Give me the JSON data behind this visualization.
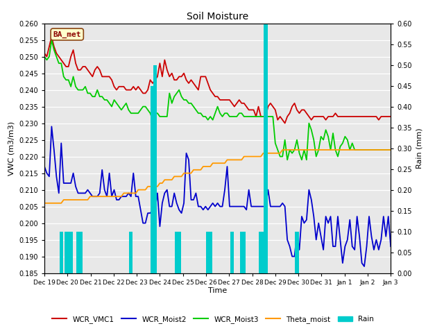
{
  "title": "Soil Moisture",
  "xlabel": "Time",
  "ylabel_left": "VWC (m3/m3)",
  "ylabel_right": "Rain (mm)",
  "ylim_left": [
    0.185,
    0.26
  ],
  "ylim_right": [
    0.0,
    0.6
  ],
  "site_label": "BA_met",
  "x_tick_labels": [
    "Dec 19",
    "Dec 20",
    "Dec 21",
    "Dec 22",
    "Dec 23",
    "Dec 24",
    "Dec 25",
    "Dec 26",
    "Dec 27",
    "Dec 28",
    "Dec 29",
    "Dec 30",
    "Dec 31",
    "Jan 1",
    "Jan 2",
    "Jan 3"
  ],
  "colors": {
    "WCR_VMC1": "#cc0000",
    "WCR_Moist2": "#0000cc",
    "WCR_Moist3": "#00cc00",
    "Theta_moist": "#ff9900",
    "Rain": "#00cccc"
  },
  "WCR_VMC1": [
    0.251,
    0.25,
    0.253,
    0.256,
    0.253,
    0.251,
    0.25,
    0.249,
    0.248,
    0.247,
    0.247,
    0.25,
    0.252,
    0.248,
    0.246,
    0.246,
    0.247,
    0.247,
    0.246,
    0.245,
    0.244,
    0.246,
    0.247,
    0.246,
    0.244,
    0.244,
    0.244,
    0.244,
    0.243,
    0.241,
    0.24,
    0.241,
    0.241,
    0.241,
    0.24,
    0.24,
    0.24,
    0.241,
    0.24,
    0.241,
    0.24,
    0.239,
    0.239,
    0.24,
    0.243,
    0.242,
    0.243,
    0.244,
    0.248,
    0.244,
    0.249,
    0.246,
    0.244,
    0.245,
    0.243,
    0.243,
    0.244,
    0.244,
    0.245,
    0.243,
    0.242,
    0.243,
    0.242,
    0.241,
    0.24,
    0.244,
    0.244,
    0.244,
    0.242,
    0.24,
    0.239,
    0.238,
    0.238,
    0.237,
    0.237,
    0.237,
    0.237,
    0.237,
    0.236,
    0.235,
    0.236,
    0.237,
    0.236,
    0.236,
    0.235,
    0.234,
    0.234,
    0.234,
    0.232,
    0.235,
    0.232,
    0.232,
    0.232,
    0.235,
    0.236,
    0.235,
    0.234,
    0.231,
    0.232,
    0.231,
    0.23,
    0.232,
    0.233,
    0.235,
    0.236,
    0.234,
    0.233,
    0.234,
    0.234,
    0.233,
    0.232,
    0.231,
    0.232,
    0.232,
    0.232,
    0.232,
    0.232,
    0.231,
    0.232,
    0.232,
    0.232,
    0.233,
    0.232,
    0.232,
    0.232,
    0.232,
    0.232,
    0.232,
    0.232,
    0.232,
    0.232,
    0.232,
    0.232,
    0.232,
    0.232,
    0.232,
    0.232,
    0.232,
    0.232,
    0.231,
    0.232,
    0.232,
    0.232,
    0.232,
    0.232
  ],
  "WCR_Moist2": [
    0.217,
    0.215,
    0.214,
    0.229,
    0.222,
    0.214,
    0.209,
    0.224,
    0.212,
    0.212,
    0.212,
    0.212,
    0.215,
    0.211,
    0.209,
    0.209,
    0.209,
    0.209,
    0.21,
    0.209,
    0.208,
    0.208,
    0.208,
    0.209,
    0.216,
    0.21,
    0.208,
    0.215,
    0.208,
    0.21,
    0.207,
    0.207,
    0.208,
    0.208,
    0.208,
    0.209,
    0.208,
    0.215,
    0.208,
    0.208,
    0.204,
    0.2,
    0.2,
    0.203,
    0.203,
    0.204,
    0.204,
    0.209,
    0.199,
    0.206,
    0.209,
    0.21,
    0.205,
    0.205,
    0.209,
    0.206,
    0.204,
    0.203,
    0.206,
    0.221,
    0.219,
    0.207,
    0.207,
    0.209,
    0.205,
    0.205,
    0.204,
    0.205,
    0.204,
    0.205,
    0.206,
    0.205,
    0.206,
    0.205,
    0.205,
    0.21,
    0.217,
    0.205,
    0.205,
    0.205,
    0.205,
    0.205,
    0.205,
    0.205,
    0.204,
    0.21,
    0.205,
    0.205,
    0.205,
    0.205,
    0.205,
    0.205,
    0.205,
    0.21,
    0.205,
    0.205,
    0.205,
    0.205,
    0.205,
    0.206,
    0.205,
    0.195,
    0.193,
    0.19,
    0.19,
    0.197,
    0.192,
    0.202,
    0.2,
    0.201,
    0.21,
    0.207,
    0.202,
    0.195,
    0.2,
    0.196,
    0.192,
    0.202,
    0.2,
    0.202,
    0.193,
    0.193,
    0.202,
    0.195,
    0.188,
    0.193,
    0.195,
    0.201,
    0.193,
    0.192,
    0.202,
    0.196,
    0.188,
    0.187,
    0.193,
    0.202,
    0.196,
    0.192,
    0.195,
    0.192,
    0.195,
    0.202,
    0.196,
    0.202,
    0.193
  ],
  "WCR_Moist3": [
    0.25,
    0.249,
    0.25,
    0.255,
    0.252,
    0.25,
    0.248,
    0.248,
    0.244,
    0.243,
    0.243,
    0.241,
    0.244,
    0.241,
    0.24,
    0.24,
    0.24,
    0.241,
    0.239,
    0.239,
    0.238,
    0.238,
    0.24,
    0.238,
    0.238,
    0.237,
    0.237,
    0.236,
    0.235,
    0.237,
    0.236,
    0.235,
    0.234,
    0.235,
    0.236,
    0.234,
    0.233,
    0.233,
    0.233,
    0.233,
    0.234,
    0.235,
    0.235,
    0.234,
    0.233,
    0.231,
    0.233,
    0.233,
    0.232,
    0.232,
    0.232,
    0.232,
    0.239,
    0.236,
    0.238,
    0.239,
    0.24,
    0.238,
    0.237,
    0.237,
    0.236,
    0.236,
    0.235,
    0.234,
    0.233,
    0.233,
    0.232,
    0.232,
    0.231,
    0.232,
    0.231,
    0.233,
    0.235,
    0.233,
    0.232,
    0.233,
    0.233,
    0.232,
    0.232,
    0.232,
    0.232,
    0.233,
    0.233,
    0.232,
    0.232,
    0.232,
    0.232,
    0.232,
    0.232,
    0.232,
    0.232,
    0.232,
    0.232,
    0.232,
    0.232,
    0.232,
    0.224,
    0.222,
    0.22,
    0.22,
    0.225,
    0.219,
    0.222,
    0.221,
    0.222,
    0.225,
    0.221,
    0.219,
    0.222,
    0.219,
    0.23,
    0.228,
    0.225,
    0.22,
    0.222,
    0.226,
    0.225,
    0.228,
    0.226,
    0.222,
    0.227,
    0.222,
    0.22,
    0.223,
    0.224,
    0.226,
    0.225,
    0.222,
    0.224,
    0.222,
    0.222,
    0.222,
    0.222,
    0.222,
    0.222,
    0.222,
    0.222,
    0.222,
    0.222,
    0.222,
    0.222,
    0.222,
    0.222,
    0.222,
    0.222
  ],
  "Theta_moist": [
    0.206,
    0.206,
    0.206,
    0.206,
    0.206,
    0.206,
    0.206,
    0.206,
    0.207,
    0.207,
    0.207,
    0.207,
    0.207,
    0.207,
    0.207,
    0.207,
    0.207,
    0.207,
    0.207,
    0.208,
    0.208,
    0.208,
    0.208,
    0.208,
    0.208,
    0.208,
    0.208,
    0.208,
    0.208,
    0.208,
    0.208,
    0.208,
    0.208,
    0.209,
    0.209,
    0.209,
    0.209,
    0.209,
    0.209,
    0.21,
    0.21,
    0.21,
    0.21,
    0.211,
    0.211,
    0.211,
    0.211,
    0.211,
    0.212,
    0.212,
    0.213,
    0.213,
    0.213,
    0.213,
    0.214,
    0.214,
    0.214,
    0.214,
    0.215,
    0.215,
    0.215,
    0.215,
    0.216,
    0.216,
    0.216,
    0.216,
    0.217,
    0.217,
    0.217,
    0.217,
    0.218,
    0.218,
    0.218,
    0.218,
    0.218,
    0.218,
    0.219,
    0.219,
    0.219,
    0.219,
    0.219,
    0.219,
    0.219,
    0.22,
    0.22,
    0.22,
    0.22,
    0.22,
    0.22,
    0.22,
    0.22,
    0.221,
    0.221,
    0.221,
    0.221,
    0.221,
    0.221,
    0.221,
    0.221,
    0.222,
    0.222,
    0.222,
    0.222,
    0.222,
    0.222,
    0.222,
    0.222,
    0.222,
    0.222,
    0.222,
    0.222,
    0.222,
    0.222,
    0.222,
    0.222,
    0.222,
    0.222,
    0.222,
    0.222,
    0.222,
    0.222,
    0.222,
    0.222,
    0.222,
    0.222,
    0.222,
    0.222,
    0.222,
    0.222,
    0.222,
    0.222,
    0.222,
    0.222,
    0.222,
    0.222,
    0.222,
    0.222,
    0.222,
    0.222,
    0.222,
    0.222,
    0.222,
    0.222,
    0.222,
    0.222
  ],
  "Rain_times": [
    7,
    9,
    10,
    11,
    14,
    15,
    36,
    45,
    46,
    55,
    56,
    68,
    69,
    78,
    82,
    83,
    90,
    91,
    92,
    105
  ],
  "Rain_heights": [
    0.1,
    0.1,
    0.1,
    0.1,
    0.1,
    0.1,
    0.1,
    0.45,
    0.5,
    0.1,
    0.1,
    0.1,
    0.1,
    0.1,
    0.1,
    0.1,
    0.1,
    0.1,
    0.6,
    0.1
  ]
}
